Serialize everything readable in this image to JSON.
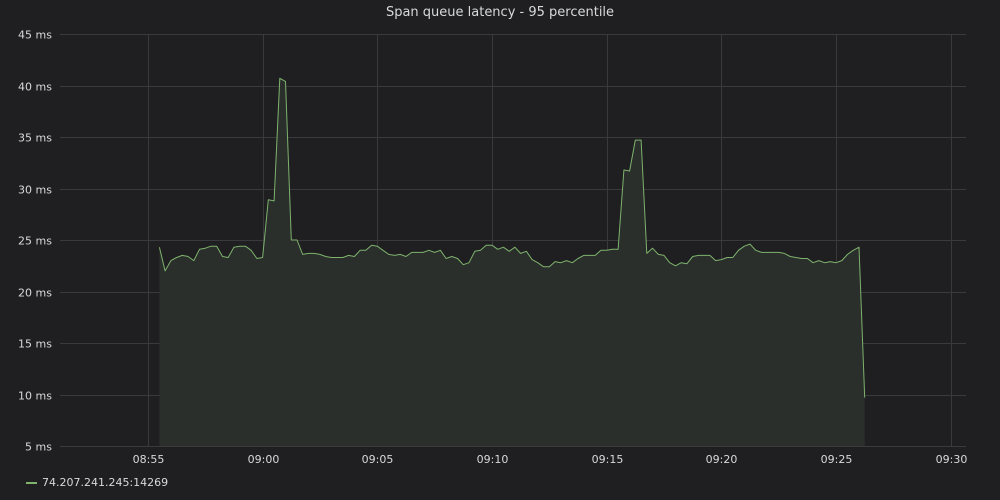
{
  "colors": {
    "background": "#1f1f21",
    "grid": "#3a3a3c",
    "text": "#d8d9da",
    "series": "#7eb26d",
    "fill": "#2a2f2b"
  },
  "chart_data": {
    "type": "area",
    "title": "Span queue latency - 95 percentile",
    "xlabel": "",
    "ylabel": "",
    "grid": true,
    "legend_position": "bottom-left",
    "y_unit": "ms",
    "y_ticks": [
      5,
      10,
      15,
      20,
      25,
      30,
      35,
      40,
      45
    ],
    "y_tick_labels": [
      "5 ms",
      "10 ms",
      "15 ms",
      "20 ms",
      "25 ms",
      "30 ms",
      "35 ms",
      "40 ms",
      "45 ms"
    ],
    "ylim": [
      5,
      45
    ],
    "x_ticks": [
      "08:55",
      "09:00",
      "09:05",
      "09:10",
      "09:15",
      "09:20",
      "09:25",
      "09:30"
    ],
    "xlim": [
      "08:51:10",
      "09:30:40"
    ],
    "series": [
      {
        "name": "74.207.241.245:14269",
        "points": [
          [
            "08:55:30",
            24.3
          ],
          [
            "08:55:45",
            22.0
          ],
          [
            "08:56:00",
            23.0
          ],
          [
            "08:56:15",
            23.3
          ],
          [
            "08:56:30",
            23.5
          ],
          [
            "08:56:45",
            23.4
          ],
          [
            "08:57:00",
            23.0
          ],
          [
            "08:57:15",
            24.1
          ],
          [
            "08:57:30",
            24.2
          ],
          [
            "08:57:45",
            24.4
          ],
          [
            "08:58:00",
            24.4
          ],
          [
            "08:58:15",
            23.4
          ],
          [
            "08:58:30",
            23.3
          ],
          [
            "08:58:45",
            24.3
          ],
          [
            "08:59:00",
            24.4
          ],
          [
            "08:59:15",
            24.4
          ],
          [
            "08:59:30",
            24.0
          ],
          [
            "08:59:45",
            23.2
          ],
          [
            "09:00:00",
            23.3
          ],
          [
            "09:00:15",
            28.9
          ],
          [
            "09:00:30",
            28.8
          ],
          [
            "09:00:45",
            40.7
          ],
          [
            "09:01:00",
            40.4
          ],
          [
            "09:01:15",
            25.0
          ],
          [
            "09:01:30",
            25.0
          ],
          [
            "09:01:45",
            23.6
          ],
          [
            "09:02:00",
            23.7
          ],
          [
            "09:02:15",
            23.7
          ],
          [
            "09:02:30",
            23.6
          ],
          [
            "09:02:45",
            23.4
          ],
          [
            "09:03:00",
            23.3
          ],
          [
            "09:03:15",
            23.3
          ],
          [
            "09:03:30",
            23.3
          ],
          [
            "09:03:45",
            23.5
          ],
          [
            "09:04:00",
            23.4
          ],
          [
            "09:04:15",
            24.0
          ],
          [
            "09:04:30",
            24.0
          ],
          [
            "09:04:45",
            24.5
          ],
          [
            "09:05:00",
            24.4
          ],
          [
            "09:05:15",
            24.0
          ],
          [
            "09:05:30",
            23.6
          ],
          [
            "09:05:45",
            23.5
          ],
          [
            "09:06:00",
            23.6
          ],
          [
            "09:06:15",
            23.4
          ],
          [
            "09:06:30",
            23.8
          ],
          [
            "09:06:45",
            23.8
          ],
          [
            "09:07:00",
            23.8
          ],
          [
            "09:07:15",
            24.0
          ],
          [
            "09:07:30",
            23.8
          ],
          [
            "09:07:45",
            24.0
          ],
          [
            "09:08:00",
            23.2
          ],
          [
            "09:08:15",
            23.4
          ],
          [
            "09:08:30",
            23.2
          ],
          [
            "09:08:45",
            22.6
          ],
          [
            "09:09:00",
            22.8
          ],
          [
            "09:09:15",
            23.9
          ],
          [
            "09:09:30",
            24.0
          ],
          [
            "09:09:45",
            24.5
          ],
          [
            "09:10:00",
            24.5
          ],
          [
            "09:10:15",
            24.1
          ],
          [
            "09:10:30",
            24.3
          ],
          [
            "09:10:45",
            23.9
          ],
          [
            "09:11:00",
            24.3
          ],
          [
            "09:11:15",
            23.7
          ],
          [
            "09:11:30",
            23.9
          ],
          [
            "09:11:45",
            23.1
          ],
          [
            "09:12:00",
            22.8
          ],
          [
            "09:12:15",
            22.4
          ],
          [
            "09:12:30",
            22.4
          ],
          [
            "09:12:45",
            22.9
          ],
          [
            "09:13:00",
            22.8
          ],
          [
            "09:13:15",
            23.0
          ],
          [
            "09:13:30",
            22.8
          ],
          [
            "09:13:45",
            23.2
          ],
          [
            "09:14:00",
            23.5
          ],
          [
            "09:14:15",
            23.5
          ],
          [
            "09:14:30",
            23.5
          ],
          [
            "09:14:45",
            24.0
          ],
          [
            "09:15:00",
            24.0
          ],
          [
            "09:15:15",
            24.1
          ],
          [
            "09:15:30",
            24.1
          ],
          [
            "09:15:45",
            31.8
          ],
          [
            "09:16:00",
            31.7
          ],
          [
            "09:16:15",
            34.7
          ],
          [
            "09:16:30",
            34.7
          ],
          [
            "09:16:45",
            23.7
          ],
          [
            "09:17:00",
            24.2
          ],
          [
            "09:17:15",
            23.6
          ],
          [
            "09:17:30",
            23.5
          ],
          [
            "09:17:45",
            22.8
          ],
          [
            "09:18:00",
            22.5
          ],
          [
            "09:18:15",
            22.8
          ],
          [
            "09:18:30",
            22.7
          ],
          [
            "09:18:45",
            23.4
          ],
          [
            "09:19:00",
            23.5
          ],
          [
            "09:19:15",
            23.5
          ],
          [
            "09:19:30",
            23.5
          ],
          [
            "09:19:45",
            23.0
          ],
          [
            "09:20:00",
            23.1
          ],
          [
            "09:20:15",
            23.3
          ],
          [
            "09:20:30",
            23.3
          ],
          [
            "09:20:45",
            24.0
          ],
          [
            "09:21:00",
            24.4
          ],
          [
            "09:21:15",
            24.6
          ],
          [
            "09:21:30",
            24.0
          ],
          [
            "09:21:45",
            23.8
          ],
          [
            "09:22:00",
            23.8
          ],
          [
            "09:22:15",
            23.8
          ],
          [
            "09:22:30",
            23.8
          ],
          [
            "09:22:45",
            23.7
          ],
          [
            "09:23:00",
            23.4
          ],
          [
            "09:23:15",
            23.3
          ],
          [
            "09:23:30",
            23.2
          ],
          [
            "09:23:45",
            23.2
          ],
          [
            "09:24:00",
            22.8
          ],
          [
            "09:24:15",
            23.0
          ],
          [
            "09:24:30",
            22.8
          ],
          [
            "09:24:45",
            22.9
          ],
          [
            "09:25:00",
            22.8
          ],
          [
            "09:25:15",
            23.0
          ],
          [
            "09:25:30",
            23.6
          ],
          [
            "09:25:45",
            24.0
          ],
          [
            "09:26:00",
            24.3
          ],
          [
            "09:26:15",
            9.7
          ]
        ]
      }
    ]
  }
}
